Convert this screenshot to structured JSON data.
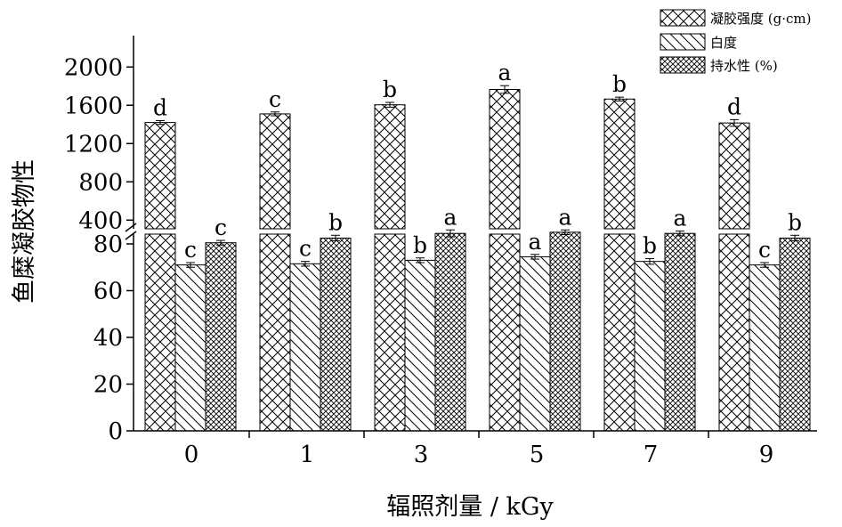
{
  "chart_data": {
    "type": "bar",
    "categories": [
      "0",
      "1",
      "3",
      "5",
      "7",
      "9"
    ],
    "xlabel": "辐照剂量 / kGy",
    "ylabel": "鱼糜凝胶物性",
    "y_broken_axis": true,
    "y_lower_ticks": [
      "0",
      "20",
      "40",
      "60",
      "80"
    ],
    "y_upper_ticks": [
      "400",
      "800",
      "1200",
      "1600",
      "2000"
    ],
    "ylim_lower": [
      0,
      85
    ],
    "ylim_upper": [
      300,
      2150
    ],
    "grid": false,
    "legend_position": "top-right",
    "series": [
      {
        "name": "凝胶强度 (g·cm)",
        "pattern": "crosshatch",
        "values": [
          1420,
          1510,
          1605,
          1765,
          1665,
          1415
        ],
        "errors": [
          20,
          20,
          25,
          40,
          20,
          35
        ],
        "letters": [
          "d",
          "c",
          "b",
          "a",
          "b",
          "d"
        ]
      },
      {
        "name": "白度",
        "pattern": "diagonal",
        "values": [
          71,
          71.5,
          73,
          74.5,
          72.5,
          71
        ],
        "errors": [
          1,
          1,
          1,
          1,
          1.2,
          1
        ],
        "letters": [
          "c",
          "c",
          "b",
          "a",
          "b",
          "c"
        ]
      },
      {
        "name": "持水性 (%)",
        "pattern": "dense-crosshatch",
        "values": [
          80.5,
          82.5,
          84.5,
          85,
          84.5,
          82.5
        ],
        "errors": [
          1,
          1.2,
          1.5,
          1,
          1,
          1.2
        ],
        "letters": [
          "c",
          "b",
          "a",
          "a",
          "a",
          "b"
        ]
      }
    ]
  }
}
